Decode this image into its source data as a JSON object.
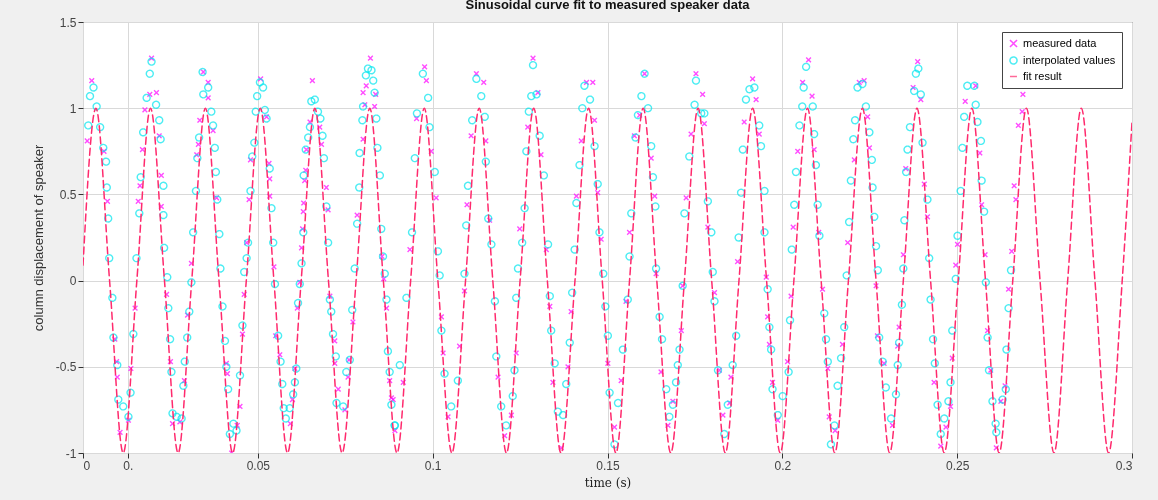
{
  "chart_data": {
    "type": "scatter",
    "title": "Sinusoidal curve fit to measured speaker data",
    "xlabel": "time (s)",
    "ylabel": "column displacement of speaker",
    "xlim": [
      0,
      0.3
    ],
    "ylim": [
      -1,
      1.5
    ],
    "xticks": [
      0,
      {
        "value": 0.0128,
        "label": "0."
      },
      0.05,
      0.1,
      0.15,
      0.2,
      0.25,
      0.3
    ],
    "yticks": [
      -1,
      -0.5,
      0,
      0.5,
      1,
      1.5
    ],
    "grid": true,
    "legend": "top right",
    "series": [
      {
        "name": "measured data",
        "type": "scatter",
        "marker": "cross",
        "color": "#ff00ff",
        "x": [
          0.0012,
          0.0025,
          0.006,
          0.007,
          0.0091,
          0.0096,
          0.0098,
          0.0106,
          0.013,
          0.0137,
          0.0149,
          0.0158,
          0.0163,
          0.017,
          0.0177,
          0.0191,
          0.0196,
          0.021,
          0.0218,
          0.0224,
          0.0224,
          0.0239,
          0.025,
          0.0256,
          0.0277,
          0.029,
          0.0299,
          0.031,
          0.0325,
          0.033,
          0.0334,
          0.0344,
          0.0358,
          0.0358,
          0.0372,
          0.0382,
          0.041,
          0.0413,
          0.0425,
          0.0441,
          0.0449,
          0.0456,
          0.0461,
          0.0468,
          0.0475,
          0.0479,
          0.0508,
          0.0525,
          0.0532,
          0.0534,
          0.0534,
          0.0546,
          0.0551,
          0.0563,
          0.0593,
          0.0599,
          0.0606,
          0.0613,
          0.062,
          0.0625,
          0.0628,
          0.063,
          0.0631,
          0.0634,
          0.0637,
          0.0639,
          0.0649,
          0.0656,
          0.0677,
          0.0682,
          0.0696,
          0.0701,
          0.0706,
          0.072,
          0.072,
          0.073,
          0.0749,
          0.0758,
          0.0761,
          0.0772,
          0.0784,
          0.0801,
          0.0806,
          0.0801,
          0.081,
          0.0822,
          0.0834,
          0.0837,
          0.0855,
          0.086,
          0.0868,
          0.0877,
          0.0882,
          0.0892,
          0.0887,
          0.0916,
          0.0935,
          0.0954,
          0.0977,
          0.0982,
          0.0996,
          0.101,
          0.1025,
          0.103,
          0.1044,
          0.1077,
          0.1091,
          0.1098,
          0.111,
          0.1125,
          0.1146,
          0.1152,
          0.1163,
          0.1187,
          0.1206,
          0.1225,
          0.1239,
          0.1249,
          0.1272,
          0.1287,
          0.1301,
          0.131,
          0.1325,
          0.1335,
          0.1344,
          0.1368,
          0.1387,
          0.1396,
          0.1411,
          0.1425,
          0.144,
          0.1458,
          0.1463,
          0.1472,
          0.1482,
          0.1501,
          0.152,
          0.1539,
          0.1553,
          0.1563,
          0.1577,
          0.1592,
          0.1606,
          0.1625,
          0.1635,
          0.1639,
          0.1653,
          0.1673,
          0.1687,
          0.1711,
          0.1715,
          0.1725,
          0.1739,
          0.1753,
          0.1772,
          0.1777,
          0.1787,
          0.1806,
          0.182,
          0.183,
          0.1849,
          0.1853,
          0.1872,
          0.1891,
          0.1915,
          0.1925,
          0.1934,
          0.1954,
          0.1958,
          0.1963,
          0.1972,
          0.1987,
          0.2015,
          0.2025,
          0.2031,
          0.2044,
          0.2058,
          0.2075,
          0.2085,
          0.2091,
          0.2104,
          0.2115,
          0.213,
          0.2134,
          0.2151,
          0.2172,
          0.2187,
          0.2206,
          0.222,
          0.2234,
          0.2244,
          0.2249,
          0.2268,
          0.2272,
          0.2291,
          0.2315,
          0.233,
          0.2334,
          0.2346,
          0.2353,
          0.2374,
          0.2387,
          0.2396,
          0.2406,
          0.2415,
          0.2434,
          0.2453,
          0.2468,
          0.2481,
          0.2486,
          0.2496,
          0.2501,
          0.2523,
          0.2553,
          0.2565,
          0.257,
          0.258,
          0.2587,
          0.2596,
          0.2612,
          0.2625,
          0.2637,
          0.2647,
          0.2656,
          0.2663,
          0.2668,
          0.2675,
          0.2686,
          0.2688
        ],
        "values": [
          0.81,
          1.16,
          0.75,
          0.46,
          -0.34,
          -0.47,
          -0.56,
          -0.88,
          -0.81,
          -0.51,
          -0.16,
          0.46,
          0.55,
          0.76,
          0.99,
          1.08,
          1.29,
          1.09,
          0.84,
          0.61,
          0.43,
          -0.08,
          -0.47,
          -0.83,
          -0.82,
          -0.58,
          -0.2,
          0.1,
          0.73,
          0.79,
          0.93,
          1.21,
          1.15,
          1.06,
          0.87,
          0.48,
          -0.48,
          -0.54,
          -1.0,
          -0.84,
          -0.73,
          -0.31,
          -0.08,
          0.22,
          0.47,
          0.7,
          1.17,
          0.95,
          0.68,
          0.59,
          0.49,
          0.08,
          -0.32,
          -0.43,
          -0.83,
          -0.69,
          -0.51,
          -0.16,
          -0.01,
          0.19,
          0.3,
          0.4,
          0.45,
          0.58,
          0.64,
          0.76,
          0.92,
          1.16,
          0.89,
          0.79,
          0.54,
          0.41,
          -0.09,
          -0.35,
          -0.48,
          -0.63,
          -0.75,
          -0.56,
          -0.46,
          -0.24,
          0.38,
          0.82,
          1.02,
          1.09,
          1.13,
          1.29,
          1.01,
          1.08,
          0.14,
          0.01,
          -0.16,
          -0.58,
          -0.68,
          -0.87,
          -0.69,
          -0.59,
          0.18,
          0.94,
          1.24,
          1.16,
          0.75,
          0.48,
          -0.21,
          -0.42,
          -0.79,
          -0.38,
          -0.06,
          0.44,
          0.84,
          1.2,
          1.15,
          0.81,
          0.35,
          -0.56,
          -0.9,
          -0.78,
          -0.42,
          0.3,
          0.89,
          1.29,
          1.09,
          0.73,
          0.18,
          -0.15,
          -0.59,
          -0.97,
          -0.5,
          -0.18,
          0.49,
          0.81,
          1.15,
          1.15,
          0.93,
          0.51,
          0.24,
          -0.48,
          -0.85,
          -0.58,
          -0.12,
          0.28,
          0.84,
          0.96,
          1.2,
          0.71,
          0.49,
          0.04,
          -0.53,
          -0.84,
          -0.7,
          -0.29,
          -0.03,
          0.48,
          0.85,
          1.2,
          1.08,
          0.91,
          0.31,
          -0.07,
          -0.52,
          -0.78,
          -0.71,
          -0.56,
          0.11,
          0.92,
          1.17,
          1.05,
          0.85,
          0.02,
          -0.21,
          -0.37,
          -0.59,
          -0.81,
          -0.47,
          -0.09,
          0.31,
          0.75,
          1.15,
          1.28,
          1.07,
          0.76,
          0.28,
          -0.05,
          -0.51,
          -0.79,
          -0.87,
          -0.37,
          0.22,
          0.7,
          1.15,
          1.16,
          0.95,
          0.77,
          -0.03,
          -0.32,
          -0.48,
          -0.84,
          -0.38,
          -0.27,
          0.15,
          0.65,
          1.12,
          1.27,
          1.05,
          0.56,
          0.37,
          -0.59,
          -0.96,
          -0.85,
          -0.73,
          -0.45,
          0.09,
          0.21,
          1.04,
          1.13,
          0.74,
          0.44,
          0.15,
          -0.29,
          -0.52,
          -0.97,
          -0.7,
          -0.61,
          -0.05,
          0.17,
          0.55,
          0.47,
          0.9,
          0.98,
          1.08
        ]
      },
      {
        "name": "interpolated values",
        "type": "scatter",
        "marker": "circle",
        "color": "#00e5ee",
        "x": [
          0.0015,
          0.002,
          0.003,
          0.0039,
          0.0049,
          0.0058,
          0.0066,
          0.0068,
          0.0072,
          0.0075,
          0.0084,
          0.0087,
          0.0098,
          0.0101,
          0.0115,
          0.013,
          0.0136,
          0.0144,
          0.0153,
          0.0161,
          0.0165,
          0.0172,
          0.0182,
          0.0191,
          0.0196,
          0.0209,
          0.0218,
          0.0222,
          0.023,
          0.023,
          0.0232,
          0.0241,
          0.0244,
          0.0249,
          0.0253,
          0.0256,
          0.0268,
          0.0282,
          0.0287,
          0.0291,
          0.0298,
          0.0304,
          0.031,
          0.0315,
          0.0323,
          0.0327,
          0.0332,
          0.0342,
          0.0344,
          0.0358,
          0.0367,
          0.0372,
          0.0377,
          0.038,
          0.0384,
          0.039,
          0.0393,
          0.0399,
          0.0406,
          0.041,
          0.0415,
          0.042,
          0.043,
          0.0439,
          0.0449,
          0.0456,
          0.0461,
          0.0468,
          0.0472,
          0.0479,
          0.0484,
          0.049,
          0.0494,
          0.0498,
          0.0506,
          0.0515,
          0.052,
          0.0525,
          0.0534,
          0.0539,
          0.0544,
          0.0549,
          0.0558,
          0.0565,
          0.057,
          0.0574,
          0.058,
          0.0591,
          0.0601,
          0.0606,
          0.061,
          0.0615,
          0.062,
          0.0625,
          0.063,
          0.0631,
          0.0637,
          0.0644,
          0.0649,
          0.0653,
          0.0663,
          0.0672,
          0.0679,
          0.0685,
          0.0689,
          0.0696,
          0.0701,
          0.0706,
          0.071,
          0.0715,
          0.0723,
          0.0725,
          0.0744,
          0.0753,
          0.0763,
          0.077,
          0.0777,
          0.0784,
          0.079,
          0.0791,
          0.0799,
          0.0801,
          0.0809,
          0.0815,
          0.0825,
          0.083,
          0.0834,
          0.0839,
          0.0842,
          0.0849,
          0.0853,
          0.0858,
          0.0863,
          0.0868,
          0.0872,
          0.0877,
          0.0882,
          0.0892,
          0.0891,
          0.0906,
          0.0925,
          0.0941,
          0.0949,
          0.0955,
          0.0972,
          0.0987,
          0.0991,
          0.1006,
          0.1015,
          0.102,
          0.1025,
          0.1034,
          0.1053,
          0.1072,
          0.1091,
          0.1096,
          0.1101,
          0.1113,
          0.1125,
          0.1139,
          0.1149,
          0.1152,
          0.1159,
          0.1168,
          0.1178,
          0.1182,
          0.1196,
          0.121,
          0.1229,
          0.1234,
          0.1239,
          0.1244,
          0.1256,
          0.1263,
          0.1268,
          0.1275,
          0.1282,
          0.1287,
          0.1297,
          0.1306,
          0.1318,
          0.133,
          0.1335,
          0.1339,
          0.1349,
          0.1358,
          0.1373,
          0.1382,
          0.1392,
          0.1399,
          0.1406,
          0.1411,
          0.142,
          0.1428,
          0.1434,
          0.145,
          0.1463,
          0.1472,
          0.1477,
          0.1488,
          0.1494,
          0.1501,
          0.1506,
          0.152,
          0.153,
          0.1544,
          0.1558,
          0.1563,
          0.1568,
          0.158,
          0.1587,
          0.1597,
          0.1606,
          0.1616,
          0.1625,
          0.163,
          0.1637,
          0.1639,
          0.1649,
          0.1656,
          0.1668,
          0.1677,
          0.1687,
          0.1696,
          0.1701,
          0.1706,
          0.1715,
          0.172,
          0.1734,
          0.1749,
          0.1753,
          0.1768,
          0.1777,
          0.1787,
          0.1797,
          0.1801,
          0.1806,
          0.1816,
          0.1834,
          0.1844,
          0.1858,
          0.1868,
          0.1875,
          0.1882,
          0.1887,
          0.1896,
          0.1906,
          0.192,
          0.1934,
          0.1939,
          0.1949,
          0.1949,
          0.1958,
          0.1963,
          0.1968,
          0.1972,
          0.1987,
          0.2001,
          0.2018,
          0.2022,
          0.2027,
          0.2034,
          0.2039,
          0.2049,
          0.2057,
          0.2061,
          0.2068,
          0.2087,
          0.2091,
          0.2096,
          0.2101,
          0.2106,
          0.212,
          0.2125,
          0.213,
          0.2139,
          0.2149,
          0.2158,
          0.2168,
          0.2177,
          0.2184,
          0.2191,
          0.2196,
          0.2203,
          0.2208,
          0.2215,
          0.2229,
          0.2239,
          0.2249,
          0.2256,
          0.2258,
          0.2263,
          0.2268,
          0.2273,
          0.2277,
          0.2287,
          0.2296,
          0.2311,
          0.2325,
          0.233,
          0.2334,
          0.2342,
          0.2346,
          0.2349,
          0.2354,
          0.2358,
          0.2365,
          0.2377,
          0.2382,
          0.2389,
          0.2396,
          0.2401,
          0.2415,
          0.242,
          0.2424,
          0.2431,
          0.2436,
          0.2444,
          0.2453,
          0.2463,
          0.2475,
          0.2481,
          0.2486,
          0.2496,
          0.2501,
          0.251,
          0.2515,
          0.252,
          0.2529,
          0.2549,
          0.2553,
          0.2558,
          0.2568,
          0.257,
          0.2577,
          0.2582,
          0.2587,
          0.2591,
          0.2601,
          0.261,
          0.2612,
          0.263,
          0.2639,
          0.2641,
          0.2647,
          0.2654
        ],
        "values": [
          0.9,
          1.07,
          1.12,
          1.01,
          0.89,
          0.77,
          0.69,
          0.54,
          0.36,
          0.13,
          -0.1,
          -0.33,
          -0.49,
          -0.69,
          -0.73,
          -0.79,
          -0.65,
          -0.31,
          0.13,
          0.39,
          0.6,
          0.86,
          1.06,
          1.2,
          1.27,
          1.02,
          0.93,
          0.82,
          0.55,
          0.38,
          0.19,
          0.02,
          -0.16,
          -0.34,
          -0.53,
          -0.77,
          -0.79,
          -0.8,
          -0.61,
          -0.47,
          -0.33,
          -0.18,
          -0.01,
          0.28,
          0.52,
          0.71,
          0.83,
          1.21,
          1.08,
          1.12,
          0.98,
          0.9,
          0.77,
          0.63,
          0.47,
          0.27,
          0.07,
          -0.15,
          -0.35,
          -0.5,
          -0.63,
          -0.89,
          -0.83,
          -0.87,
          -0.55,
          -0.26,
          0.05,
          0.13,
          0.22,
          0.52,
          0.72,
          0.8,
          0.98,
          1.07,
          1.15,
          1.12,
          0.99,
          0.94,
          0.65,
          0.42,
          0.22,
          -0.02,
          -0.32,
          -0.47,
          -0.6,
          -0.74,
          -0.8,
          -0.74,
          -0.66,
          -0.59,
          -0.51,
          -0.13,
          -0.02,
          0.1,
          0.28,
          0.61,
          0.76,
          0.83,
          0.89,
          1.04,
          1.05,
          0.98,
          0.94,
          0.84,
          0.71,
          0.43,
          0.22,
          -0.11,
          -0.18,
          -0.31,
          -0.44,
          -0.71,
          -0.73,
          -0.53,
          -0.46,
          -0.17,
          0.07,
          0.33,
          0.54,
          0.74,
          0.93,
          1.01,
          1.19,
          1.23,
          1.22,
          1.16,
          1.09,
          0.94,
          0.77,
          0.61,
          0.3,
          0.14,
          0.04,
          -0.11,
          -0.41,
          -0.53,
          -0.72,
          -0.84,
          -0.84,
          -0.49,
          -0.1,
          0.28,
          0.71,
          0.97,
          1.2,
          1.06,
          0.89,
          0.63,
          0.17,
          0.03,
          -0.29,
          -0.54,
          -0.73,
          -0.58,
          0.04,
          0.32,
          0.55,
          0.93,
          1.17,
          1.07,
          0.95,
          0.69,
          0.36,
          0.21,
          -0.12,
          -0.44,
          -0.73,
          -0.84,
          -0.67,
          -0.52,
          -0.1,
          0.07,
          0.22,
          0.42,
          0.75,
          0.98,
          1.07,
          1.25,
          1.08,
          0.84,
          0.61,
          0.21,
          -0.09,
          -0.29,
          -0.48,
          -0.76,
          -0.78,
          -0.6,
          -0.36,
          -0.07,
          0.18,
          0.45,
          0.67,
          1.0,
          1.13,
          1.05,
          0.78,
          0.56,
          0.28,
          0.04,
          -0.15,
          -0.32,
          -0.65,
          -0.95,
          -0.71,
          -0.4,
          -0.11,
          0.14,
          0.39,
          0.83,
          0.96,
          1.07,
          1.2,
          1.0,
          0.78,
          0.6,
          0.43,
          0.07,
          -0.21,
          -0.34,
          -0.63,
          -0.79,
          -0.72,
          -0.59,
          -0.49,
          -0.4,
          -0.03,
          0.39,
          0.72,
          1.02,
          1.16,
          0.97,
          0.97,
          0.46,
          0.28,
          0.05,
          -0.12,
          -0.52,
          -0.89,
          -0.72,
          -0.49,
          -0.32,
          0.25,
          0.51,
          0.76,
          1.05,
          1.11,
          1.12,
          0.9,
          0.78,
          0.52,
          0.28,
          -0.05,
          -0.27,
          -0.4,
          -0.63,
          -0.78,
          -0.67,
          -0.53,
          -0.23,
          0.18,
          0.44,
          0.63,
          0.9,
          1.01,
          1.12,
          1.24,
          1.01,
          0.85,
          0.67,
          0.44,
          0.26,
          -0.19,
          -0.34,
          -0.47,
          -0.95,
          -0.84,
          -0.61,
          -0.45,
          -0.27,
          0.03,
          0.34,
          0.58,
          0.82,
          0.93,
          1.12,
          1.14,
          1.01,
          0.86,
          0.7,
          0.54,
          0.37,
          0.2,
          0.06,
          -0.33,
          -0.47,
          -0.62,
          -0.8,
          -0.66,
          -0.49,
          -0.36,
          -0.14,
          0.07,
          0.35,
          0.63,
          0.76,
          0.89,
          1.1,
          1.2,
          1.23,
          1.08,
          0.8,
          0.47,
          0.13,
          -0.11,
          -0.34,
          -0.48,
          -0.72,
          -0.89,
          -0.8,
          -0.7,
          -0.59,
          -0.29,
          0.01,
          0.26,
          0.52,
          0.77,
          0.95,
          1.13,
          1.13,
          1.02,
          0.92,
          0.81,
          0.58,
          0.4,
          -0.01,
          -0.33,
          -0.52,
          -0.7,
          -0.83,
          -0.88,
          -0.69,
          -0.63,
          -0.4,
          -0.16,
          0.06
        ]
      },
      {
        "name": "fit result",
        "type": "line",
        "marker": "none",
        "line_style": "dashed",
        "color": "#ff2a6d",
        "x": [
          0,
          0.0037,
          0.0076,
          0.0115,
          0.0154,
          0.0193,
          0.0233,
          0.0272,
          0.0311,
          0.035,
          0.0389,
          0.0428,
          0.0467,
          0.0507,
          0.0546,
          0.0585,
          0.0624,
          0.0663,
          0.0702,
          0.0741,
          0.0781,
          0.082,
          0.0859,
          0.0898,
          0.0937,
          0.0976,
          0.1015,
          0.1055,
          0.1094,
          0.1133,
          0.1172,
          0.1211,
          0.125,
          0.1289,
          0.1328,
          0.1367,
          0.1407,
          0.1446,
          0.1485,
          0.1524,
          0.1563,
          0.1602,
          0.1641,
          0.1681,
          0.172,
          0.1759,
          0.1798,
          0.1837,
          0.1876,
          0.1915,
          0.1955,
          0.1994,
          0.2033,
          0.2072,
          0.2111,
          0.215,
          0.2189,
          0.2229,
          0.2268,
          0.2307,
          0.2346,
          0.2385,
          0.2424,
          0.2463,
          0.2503,
          0.2542,
          0.2581,
          0.262,
          0.2659,
          0.2698,
          0.2737,
          0.2777,
          0.2816,
          0.2855,
          0.2894,
          0.2933,
          0.2972,
          0.3
        ],
        "values": [
          0.09,
          1,
          0,
          -1,
          0,
          1,
          0,
          -1,
          0,
          1,
          0,
          -1,
          0,
          1,
          0,
          -1,
          0,
          1,
          0,
          -1,
          0,
          1,
          0,
          -1,
          0,
          1,
          0,
          -1,
          0,
          1,
          0,
          -1,
          0,
          1,
          0,
          -1,
          0,
          1,
          0,
          -1,
          0,
          1,
          0,
          -1,
          0,
          1,
          0,
          -1,
          0,
          1,
          0,
          -1,
          0,
          1,
          0,
          -1,
          0,
          1,
          0,
          -1,
          0,
          1,
          0,
          -1,
          0,
          1,
          0,
          -1,
          0,
          1,
          0,
          -1,
          0,
          1,
          0,
          -1,
          0,
          0.92
        ]
      }
    ]
  }
}
